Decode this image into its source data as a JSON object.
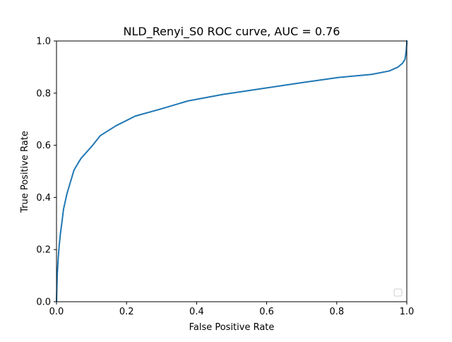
{
  "chart_data": {
    "type": "line",
    "title": "NLD_Renyi_S0 ROC curve, AUC = 0.76",
    "xlabel": "False Positive Rate",
    "ylabel": "True Positive Rate",
    "xlim": [
      0.0,
      1.0
    ],
    "ylim": [
      0.0,
      1.0
    ],
    "x_ticks": [
      "0.0",
      "0.2",
      "0.4",
      "0.6",
      "0.8",
      "1.0"
    ],
    "y_ticks": [
      "0.0",
      "0.2",
      "0.4",
      "0.6",
      "0.8",
      "1.0"
    ],
    "grid": false,
    "legend": {
      "placement": "lower right",
      "entries": []
    },
    "series": [
      {
        "color": "#1f77b4",
        "x": [
          0.0,
          0.002,
          0.005,
          0.008,
          0.012,
          0.016,
          0.02,
          0.025,
          0.03,
          0.04,
          0.05,
          0.07,
          0.1,
          0.125,
          0.17,
          0.225,
          0.3,
          0.375,
          0.475,
          0.6,
          0.7,
          0.805,
          0.9,
          0.95,
          0.975,
          0.988,
          0.995,
          0.998,
          1.0,
          1.0
        ],
        "y": [
          0.0,
          0.1,
          0.17,
          0.22,
          0.27,
          0.31,
          0.355,
          0.385,
          0.415,
          0.46,
          0.505,
          0.55,
          0.595,
          0.637,
          0.675,
          0.712,
          0.74,
          0.77,
          0.795,
          0.82,
          0.84,
          0.86,
          0.872,
          0.885,
          0.9,
          0.915,
          0.93,
          0.96,
          0.99,
          1.0
        ]
      }
    ]
  }
}
